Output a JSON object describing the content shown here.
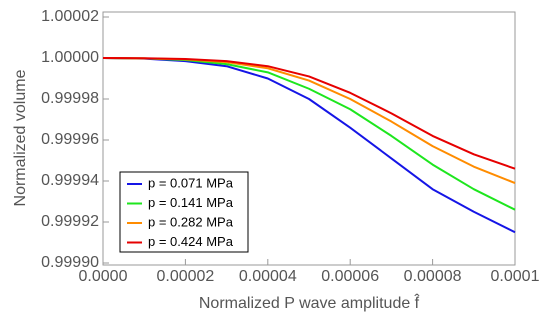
{
  "chart_data": {
    "type": "line",
    "xlabel": "Normalized P wave amplitude f̂",
    "ylabel": "Normalized volume",
    "x": [
      0,
      1e-05,
      2e-05,
      3e-05,
      4e-05,
      5e-05,
      6e-05,
      7e-05,
      8e-05,
      9e-05,
      0.0001
    ],
    "series": [
      {
        "name": "p = 0.071 MPa",
        "color": "#1515e6",
        "values": [
          1.0,
          0.9999997,
          0.9999985,
          0.999996,
          0.99999,
          0.99998,
          0.999966,
          0.999951,
          0.999936,
          0.999925,
          0.999915
        ]
      },
      {
        "name": "p = 0.141 MPa",
        "color": "#1ee61e",
        "values": [
          1.0,
          0.9999998,
          0.999999,
          0.999997,
          0.999993,
          0.999985,
          0.999975,
          0.999962,
          0.999948,
          0.999936,
          0.999926
        ]
      },
      {
        "name": "p = 0.282 MPa",
        "color": "#ff8c00",
        "values": [
          1.0,
          0.9999998,
          0.9999993,
          0.999998,
          0.999995,
          0.999989,
          0.99998,
          0.999969,
          0.999957,
          0.999947,
          0.999939
        ]
      },
      {
        "name": "p = 0.424 MPa",
        "color": "#e60000",
        "values": [
          1.0,
          0.9999999,
          0.9999995,
          0.9999985,
          0.999996,
          0.999991,
          0.999983,
          0.999973,
          0.999962,
          0.999953,
          0.999946
        ]
      }
    ],
    "xlim": [
      0,
      0.0001
    ],
    "xticks": [
      {
        "value": 0,
        "label": "0.0000"
      },
      2e-05,
      4e-05,
      6e-05,
      8e-05,
      0.0001
    ],
    "ylim": [
      0.9999,
      1.00002
    ],
    "yticks": [
      {
        "value": 0.9999,
        "label": "0.99990"
      },
      0.99992,
      0.99994,
      0.99996,
      0.99998,
      {
        "value": 1,
        "label": "1.00000"
      },
      1.00002
    ],
    "legend": "lower-left"
  }
}
